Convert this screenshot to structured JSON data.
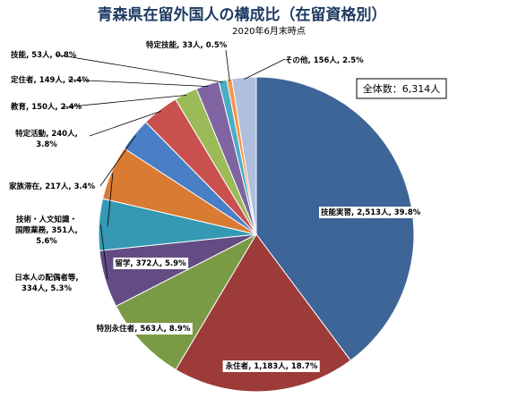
{
  "chart_data": {
    "type": "pie",
    "title": "青森県在留外国人の構成比（在留資格別）",
    "subtitle": "2020年6月末時点",
    "total_label": "全体数：6,314人",
    "start_angle_deg": 0,
    "direction": "clockwise",
    "slices": [
      {
        "label": "技能実習, 2,513人, 39.8%",
        "value": 2513,
        "color": "#3e6597"
      },
      {
        "label": "永住者, 1,183人, 18.7%",
        "value": 1183,
        "color": "#9c3b38"
      },
      {
        "label": "特別永住者, 563人, 8.9%",
        "value": 563,
        "color": "#7b9a45"
      },
      {
        "label": "留学, 372人, 5.9%",
        "value": 372,
        "color": "#634c84"
      },
      {
        "label": "日本人の配偶者等, 334人, 5.3%",
        "value": 334,
        "color": "#3599b3"
      },
      {
        "label": "技術・人文知識・国際業務, 351人, 5.6%",
        "value": 351,
        "color": "#d97b33"
      },
      {
        "label": "家族滞在, 217人, 3.4%",
        "value": 217,
        "color": "#4a7ec5"
      },
      {
        "label": "特定活動, 240人, 3.8%",
        "value": 240,
        "color": "#c9504d"
      },
      {
        "label": "教育, 150人, 2.4%",
        "value": 150,
        "color": "#9bbb59"
      },
      {
        "label": "定住者, 149人, 2.4%",
        "value": 149,
        "color": "#8064a2"
      },
      {
        "label": "技能, 53人, 0.8%",
        "value": 53,
        "color": "#4bacc6"
      },
      {
        "label": "特定技能, 33人, 0.5%",
        "value": 33,
        "color": "#f79646"
      },
      {
        "label": "その他, 156人, 2.5%",
        "value": 156,
        "color": "#b0bfdc"
      }
    ]
  }
}
